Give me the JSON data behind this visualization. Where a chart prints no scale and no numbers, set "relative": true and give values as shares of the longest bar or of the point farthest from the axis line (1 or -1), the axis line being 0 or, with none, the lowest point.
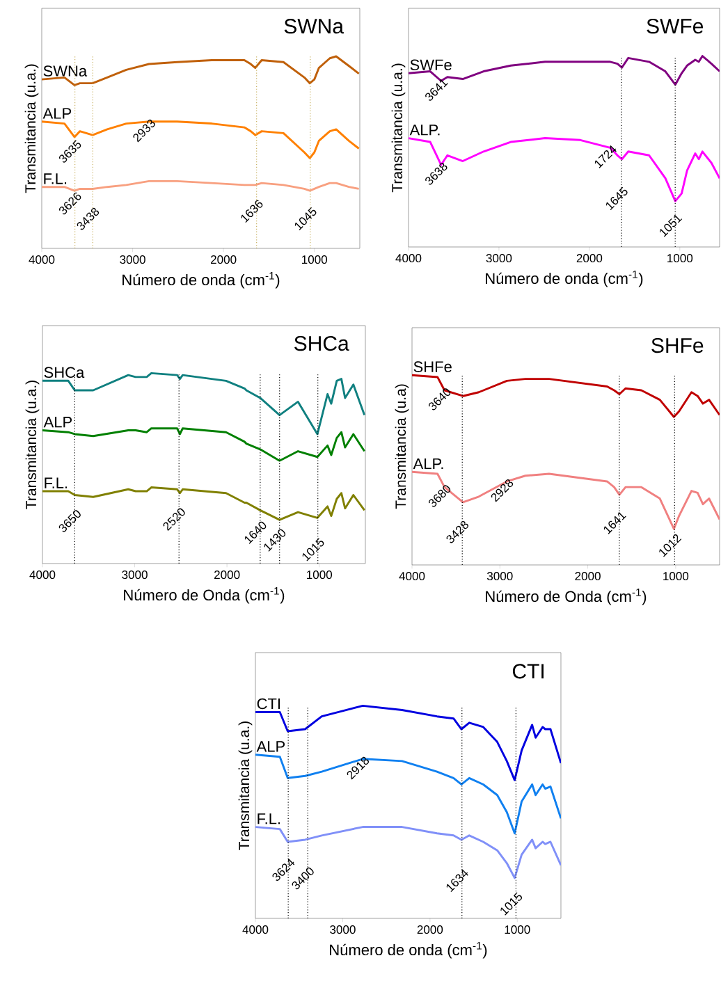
{
  "chart_data": [
    {
      "type": "line",
      "title": "SWNa",
      "xlabel": "Número de onda (cm$^{-1}$)",
      "ylabel": "Transmitancia (u.a.)",
      "relative": true,
      "xlim": [
        4000,
        500
      ],
      "xticks": [
        4000,
        3000,
        2000,
        1000
      ],
      "x": [
        4000,
        3750,
        3640,
        3580,
        3440,
        3280,
        3070,
        2820,
        2510,
        2130,
        1770,
        1700,
        1650,
        1580,
        1340,
        1110,
        1050,
        1000,
        950,
        830,
        760,
        620,
        510
      ],
      "series": [
        {
          "name": "SWNa",
          "color": "#c0600a",
          "values": [
            0.88,
            0.89,
            0.85,
            0.86,
            0.86,
            0.89,
            0.93,
            0.96,
            0.97,
            0.98,
            0.98,
            0.96,
            0.94,
            0.98,
            0.97,
            0.89,
            0.86,
            0.88,
            0.94,
            0.99,
            1.0,
            0.95,
            0.91
          ]
        },
        {
          "name": "ALP",
          "color": "#ff8000",
          "values": [
            0.66,
            0.65,
            0.58,
            0.61,
            0.59,
            0.62,
            0.65,
            0.66,
            0.66,
            0.65,
            0.63,
            0.61,
            0.59,
            0.61,
            0.6,
            0.5,
            0.47,
            0.5,
            0.56,
            0.61,
            0.62,
            0.56,
            0.52
          ]
        },
        {
          "name": "F.L.",
          "color": "#f8a080",
          "values": [
            0.32,
            0.32,
            0.3,
            0.31,
            0.31,
            0.32,
            0.33,
            0.35,
            0.35,
            0.34,
            0.33,
            0.33,
            0.33,
            0.34,
            0.33,
            0.31,
            0.3,
            0.31,
            0.32,
            0.34,
            0.34,
            0.32,
            0.31
          ]
        }
      ],
      "ref_lines": [
        {
          "axis": "x",
          "value": 3635,
          "color": "#c8b060",
          "line_style": "dotted"
        },
        {
          "axis": "x",
          "value": 3438,
          "color": "#c8b060",
          "line_style": "dotted"
        },
        {
          "axis": "x",
          "value": 1636,
          "color": "#c8b060",
          "line_style": "dotted"
        },
        {
          "axis": "x",
          "value": 1045,
          "color": "#c8b060",
          "line_style": "dotted"
        }
      ],
      "annotations": [
        {
          "text": "3635",
          "x": 3635,
          "y": 0.55
        },
        {
          "text": "2933",
          "x": 2820,
          "y": 0.66
        },
        {
          "text": "3626",
          "x": 3635,
          "y": 0.28
        },
        {
          "text": "3438",
          "x": 3438,
          "y": 0.2
        },
        {
          "text": "1636",
          "x": 1636,
          "y": 0.24
        },
        {
          "text": "1045",
          "x": 1045,
          "y": 0.2
        }
      ]
    },
    {
      "type": "line",
      "title": "SWFe",
      "xlabel": "Número de onda (cm$^{-1}$)",
      "ylabel": "Transmitancia (u.a.)",
      "relative": true,
      "xlim": [
        4000,
        560
      ],
      "xticks": [
        4000,
        3000,
        2000,
        1000
      ],
      "x": [
        4000,
        3760,
        3640,
        3570,
        3400,
        3170,
        2870,
        2490,
        2100,
        1770,
        1690,
        1640,
        1570,
        1340,
        1160,
        1050,
        980,
        920,
        830,
        790,
        750,
        650,
        560
      ],
      "series": [
        {
          "name": "SWFe",
          "color": "#800080",
          "values": [
            0.91,
            0.92,
            0.87,
            0.89,
            0.88,
            0.92,
            0.95,
            0.97,
            0.97,
            0.97,
            0.96,
            0.94,
            0.99,
            0.97,
            0.92,
            0.85,
            0.91,
            0.95,
            0.98,
            0.97,
            1.0,
            0.96,
            0.92
          ]
        },
        {
          "name": "ALP.",
          "color": "#ff00ff",
          "values": [
            0.57,
            0.55,
            0.43,
            0.48,
            0.45,
            0.5,
            0.55,
            0.57,
            0.56,
            0.52,
            0.48,
            0.46,
            0.5,
            0.48,
            0.36,
            0.24,
            0.28,
            0.4,
            0.49,
            0.46,
            0.5,
            0.44,
            0.36
          ]
        }
      ],
      "ref_lines": [
        {
          "axis": "x",
          "value": 1645,
          "color": "#000000",
          "line_style": "dotted"
        },
        {
          "axis": "x",
          "value": 1051,
          "color": "#000000",
          "line_style": "dotted"
        }
      ],
      "annotations": [
        {
          "text": "3641",
          "x": 3640,
          "y": 0.87
        },
        {
          "text": "3638",
          "x": 3640,
          "y": 0.43
        },
        {
          "text": "1724",
          "x": 1770,
          "y": 0.52
        },
        {
          "text": "1645",
          "x": 1645,
          "y": 0.3
        },
        {
          "text": "1051",
          "x": 1051,
          "y": 0.16
        }
      ]
    },
    {
      "type": "line",
      "title": "SHCa",
      "xlabel": "Número de Onda (cm$^{-1}$)",
      "ylabel": "Transmitancia (u.a.)",
      "relative": true,
      "xlim": [
        4000,
        500
      ],
      "xticks": [
        4000,
        3000,
        2000,
        1000
      ],
      "x": [
        4000,
        3720,
        3650,
        3450,
        3070,
        2990,
        2870,
        2820,
        2540,
        2510,
        2480,
        2010,
        1810,
        1790,
        1640,
        1430,
        1230,
        1020,
        910,
        870,
        810,
        760,
        720,
        630,
        510
      ],
      "series": [
        {
          "name": "SHCa",
          "color": "#108080",
          "values": [
            0.96,
            0.96,
            0.91,
            0.91,
            0.99,
            0.98,
            0.98,
            1.0,
            0.99,
            0.97,
            0.99,
            0.96,
            0.92,
            0.91,
            0.87,
            0.78,
            0.85,
            0.68,
            0.89,
            0.84,
            0.96,
            0.97,
            0.87,
            0.94,
            0.78
          ]
        },
        {
          "name": "ALP",
          "color": "#008000",
          "values": [
            0.7,
            0.69,
            0.68,
            0.67,
            0.7,
            0.7,
            0.69,
            0.71,
            0.71,
            0.68,
            0.71,
            0.69,
            0.64,
            0.63,
            0.6,
            0.54,
            0.59,
            0.56,
            0.62,
            0.57,
            0.66,
            0.69,
            0.61,
            0.68,
            0.59
          ]
        },
        {
          "name": "F.L.",
          "color": "#808000",
          "values": [
            0.38,
            0.38,
            0.36,
            0.35,
            0.39,
            0.38,
            0.38,
            0.4,
            0.39,
            0.37,
            0.39,
            0.37,
            0.32,
            0.32,
            0.28,
            0.23,
            0.27,
            0.24,
            0.3,
            0.25,
            0.34,
            0.37,
            0.29,
            0.36,
            0.28
          ]
        }
      ],
      "ref_lines": [
        {
          "axis": "x",
          "value": 3650,
          "color": "#000000",
          "line_style": "dotted"
        },
        {
          "axis": "x",
          "value": 2520,
          "color": "#000000",
          "line_style": "dotted"
        },
        {
          "axis": "x",
          "value": 1640,
          "color": "#000000",
          "line_style": "dotted"
        },
        {
          "axis": "x",
          "value": 1430,
          "color": "#000000",
          "line_style": "dotted"
        },
        {
          "axis": "x",
          "value": 1015,
          "color": "#000000",
          "line_style": "dotted"
        }
      ],
      "annotations": [
        {
          "text": "3650",
          "x": 3650,
          "y": 0.27
        },
        {
          "text": "2520",
          "x": 2520,
          "y": 0.28
        },
        {
          "text": "1640",
          "x": 1640,
          "y": 0.21
        },
        {
          "text": "1430",
          "x": 1430,
          "y": 0.17
        },
        {
          "text": "1015",
          "x": 1015,
          "y": 0.12
        }
      ]
    },
    {
      "type": "line",
      "title": "SHFe",
      "xlabel": "Número de Onda (cm$^{-1}$)",
      "ylabel": "Transmitancia (u.a)",
      "relative": true,
      "xlim": [
        4000,
        500
      ],
      "xticks": [
        4000,
        3000,
        2000,
        1000
      ],
      "x": [
        4000,
        3710,
        3630,
        3420,
        3240,
        2920,
        2710,
        2440,
        1780,
        1700,
        1640,
        1570,
        1390,
        1180,
        1020,
        960,
        820,
        750,
        690,
        620,
        500
      ],
      "series": [
        {
          "name": "SHFe",
          "color": "#c00000",
          "values": [
            1.0,
            0.99,
            0.92,
            0.89,
            0.91,
            0.97,
            0.98,
            0.98,
            0.94,
            0.92,
            0.9,
            0.93,
            0.92,
            0.87,
            0.78,
            0.81,
            0.91,
            0.89,
            0.85,
            0.87,
            0.79
          ]
        },
        {
          "name": "ALP.",
          "color": "#f08080",
          "values": [
            0.49,
            0.48,
            0.41,
            0.33,
            0.36,
            0.44,
            0.47,
            0.48,
            0.44,
            0.41,
            0.37,
            0.41,
            0.41,
            0.35,
            0.19,
            0.26,
            0.39,
            0.38,
            0.32,
            0.35,
            0.24
          ]
        }
      ],
      "ref_lines": [
        {
          "axis": "x",
          "value": 3428,
          "color": "#000000",
          "line_style": "dotted"
        },
        {
          "axis": "x",
          "value": 1641,
          "color": "#000000",
          "line_style": "dotted"
        },
        {
          "axis": "x",
          "value": 1012,
          "color": "#000000",
          "line_style": "dotted"
        }
      ],
      "annotations": [
        {
          "text": "3640",
          "x": 3630,
          "y": 0.92
        },
        {
          "text": "3680",
          "x": 3630,
          "y": 0.41
        },
        {
          "text": "3428",
          "x": 3428,
          "y": 0.22
        },
        {
          "text": "2928",
          "x": 2920,
          "y": 0.44
        },
        {
          "text": "1641",
          "x": 1641,
          "y": 0.27
        },
        {
          "text": "1012",
          "x": 1012,
          "y": 0.15
        }
      ]
    },
    {
      "type": "line",
      "title": "CTI",
      "xlabel": "Número de onda (cm$^{-1}$)",
      "ylabel": "Transmitancia (u.a.)",
      "relative": true,
      "xlim": [
        4000,
        500
      ],
      "xticks": [
        4000,
        3000,
        2000,
        1000
      ],
      "x": [
        4000,
        3720,
        3630,
        3430,
        3240,
        2770,
        2320,
        1920,
        1730,
        1640,
        1550,
        1390,
        1230,
        1120,
        1030,
        950,
        830,
        790,
        710,
        680,
        620,
        500
      ],
      "series": [
        {
          "name": "CTI",
          "color": "#0000e0",
          "values": [
            0.97,
            0.97,
            0.88,
            0.89,
            0.95,
            1.0,
            0.98,
            0.95,
            0.94,
            0.89,
            0.92,
            0.9,
            0.83,
            0.74,
            0.65,
            0.79,
            0.91,
            0.85,
            0.9,
            0.89,
            0.89,
            0.73
          ]
        },
        {
          "name": "ALP",
          "color": "#1080f0",
          "values": [
            0.77,
            0.76,
            0.66,
            0.67,
            0.69,
            0.75,
            0.74,
            0.69,
            0.66,
            0.63,
            0.66,
            0.63,
            0.58,
            0.5,
            0.4,
            0.55,
            0.63,
            0.58,
            0.63,
            0.61,
            0.62,
            0.47
          ]
        },
        {
          "name": "F.L.",
          "color": "#8090f8",
          "values": [
            0.43,
            0.42,
            0.36,
            0.37,
            0.39,
            0.43,
            0.43,
            0.4,
            0.39,
            0.37,
            0.39,
            0.36,
            0.32,
            0.26,
            0.19,
            0.3,
            0.37,
            0.33,
            0.36,
            0.35,
            0.36,
            0.25
          ]
        }
      ],
      "ref_lines": [
        {
          "axis": "x",
          "value": 3624,
          "color": "#000000",
          "line_style": "dotted"
        },
        {
          "axis": "x",
          "value": 3400,
          "color": "#000000",
          "line_style": "dotted"
        },
        {
          "axis": "x",
          "value": 1634,
          "color": "#000000",
          "line_style": "dotted"
        },
        {
          "axis": "x",
          "value": 1015,
          "color": "#000000",
          "line_style": "dotted"
        }
      ],
      "annotations": [
        {
          "text": "3624",
          "x": 3624,
          "y": 0.27
        },
        {
          "text": "3400",
          "x": 3400,
          "y": 0.23
        },
        {
          "text": "2918",
          "x": 2770,
          "y": 0.75
        },
        {
          "text": "1634",
          "x": 1634,
          "y": 0.22
        },
        {
          "text": "1015",
          "x": 1015,
          "y": 0.11
        }
      ]
    }
  ]
}
